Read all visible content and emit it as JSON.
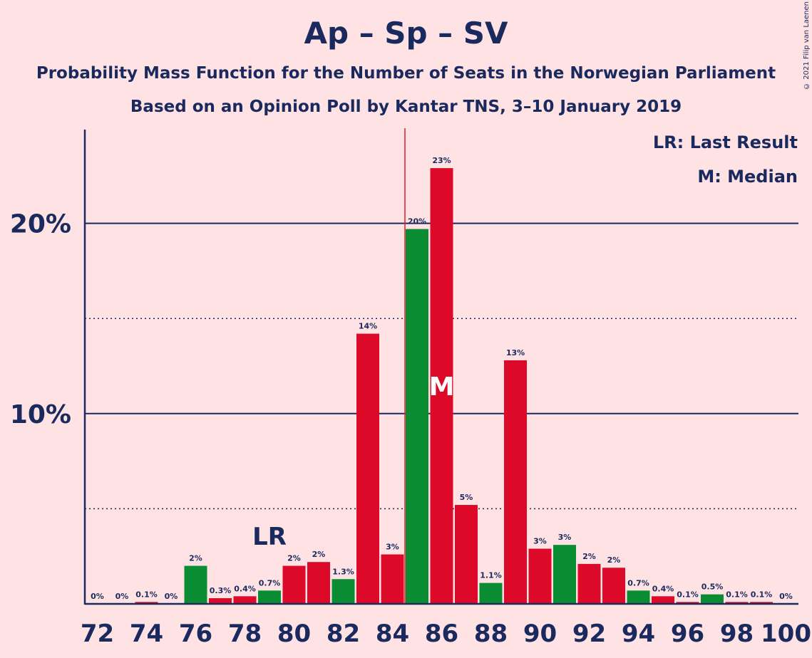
{
  "header": {
    "title": "Ap – Sp – SV",
    "subtitle": "Probability Mass Function for the Number of Seats in the Norwegian Parliament",
    "subtitle2": "Based on an Opinion Poll by Kantar TNS, 3–10 January 2019"
  },
  "legend": {
    "lr": "LR: Last Result",
    "m": "M: Median"
  },
  "copyright": "© 2021 Filip van Laenen",
  "colors": {
    "background": "#ffe2e3",
    "red": "#dc0a28",
    "red_alt": "#e41b2c",
    "green": "#0a8c32",
    "axis": "#1a2a5e",
    "median_line": "#e41b2c"
  },
  "chart_data": {
    "type": "bar",
    "x": [
      72,
      73,
      74,
      75,
      76,
      77,
      78,
      79,
      80,
      81,
      82,
      83,
      84,
      85,
      86,
      87,
      88,
      89,
      90,
      91,
      92,
      93,
      94,
      95,
      96,
      97,
      98,
      99,
      100
    ],
    "values": [
      0,
      0,
      0.1,
      0,
      2.0,
      0.3,
      0.4,
      0.7,
      2.0,
      2.2,
      1.3,
      14.2,
      2.6,
      19.7,
      22.9,
      5.2,
      1.1,
      12.8,
      2.9,
      3.1,
      2.1,
      1.9,
      0.7,
      0.4,
      0.1,
      0.5,
      0.1,
      0.1,
      0
    ],
    "labels": [
      "0%",
      "0%",
      "0.1%",
      "0%",
      "2%",
      "0.3%",
      "0.4%",
      "0.7%",
      "2%",
      "2%",
      "1.3%",
      "14%",
      "3%",
      "20%",
      "23%",
      "5%",
      "1.1%",
      "13%",
      "3%",
      "3%",
      "2%",
      "2%",
      "0.7%",
      "0.4%",
      "0.1%",
      "0.5%",
      "0.1%",
      "0.1%",
      "0%"
    ],
    "bar_colors": [
      "red",
      "red",
      "red",
      "red",
      "green",
      "red",
      "red",
      "green",
      "red",
      "red",
      "green",
      "red",
      "red",
      "green",
      "red",
      "red",
      "green",
      "red",
      "red",
      "green",
      "red",
      "red",
      "green",
      "red",
      "red",
      "green",
      "red",
      "red",
      "red"
    ],
    "x_ticks": [
      72,
      74,
      76,
      78,
      80,
      82,
      84,
      86,
      88,
      90,
      92,
      94,
      96,
      98,
      100
    ],
    "y_ticks": [
      {
        "value": 10,
        "label": "10%"
      },
      {
        "value": 20,
        "label": "20%"
      }
    ],
    "dotted_gridlines": [
      5,
      15
    ],
    "ylim": [
      0,
      25
    ],
    "last_result": {
      "seat": 79,
      "label": "LR"
    },
    "median": {
      "seat": 86,
      "label": "M"
    },
    "majority_line_seat": 85
  }
}
